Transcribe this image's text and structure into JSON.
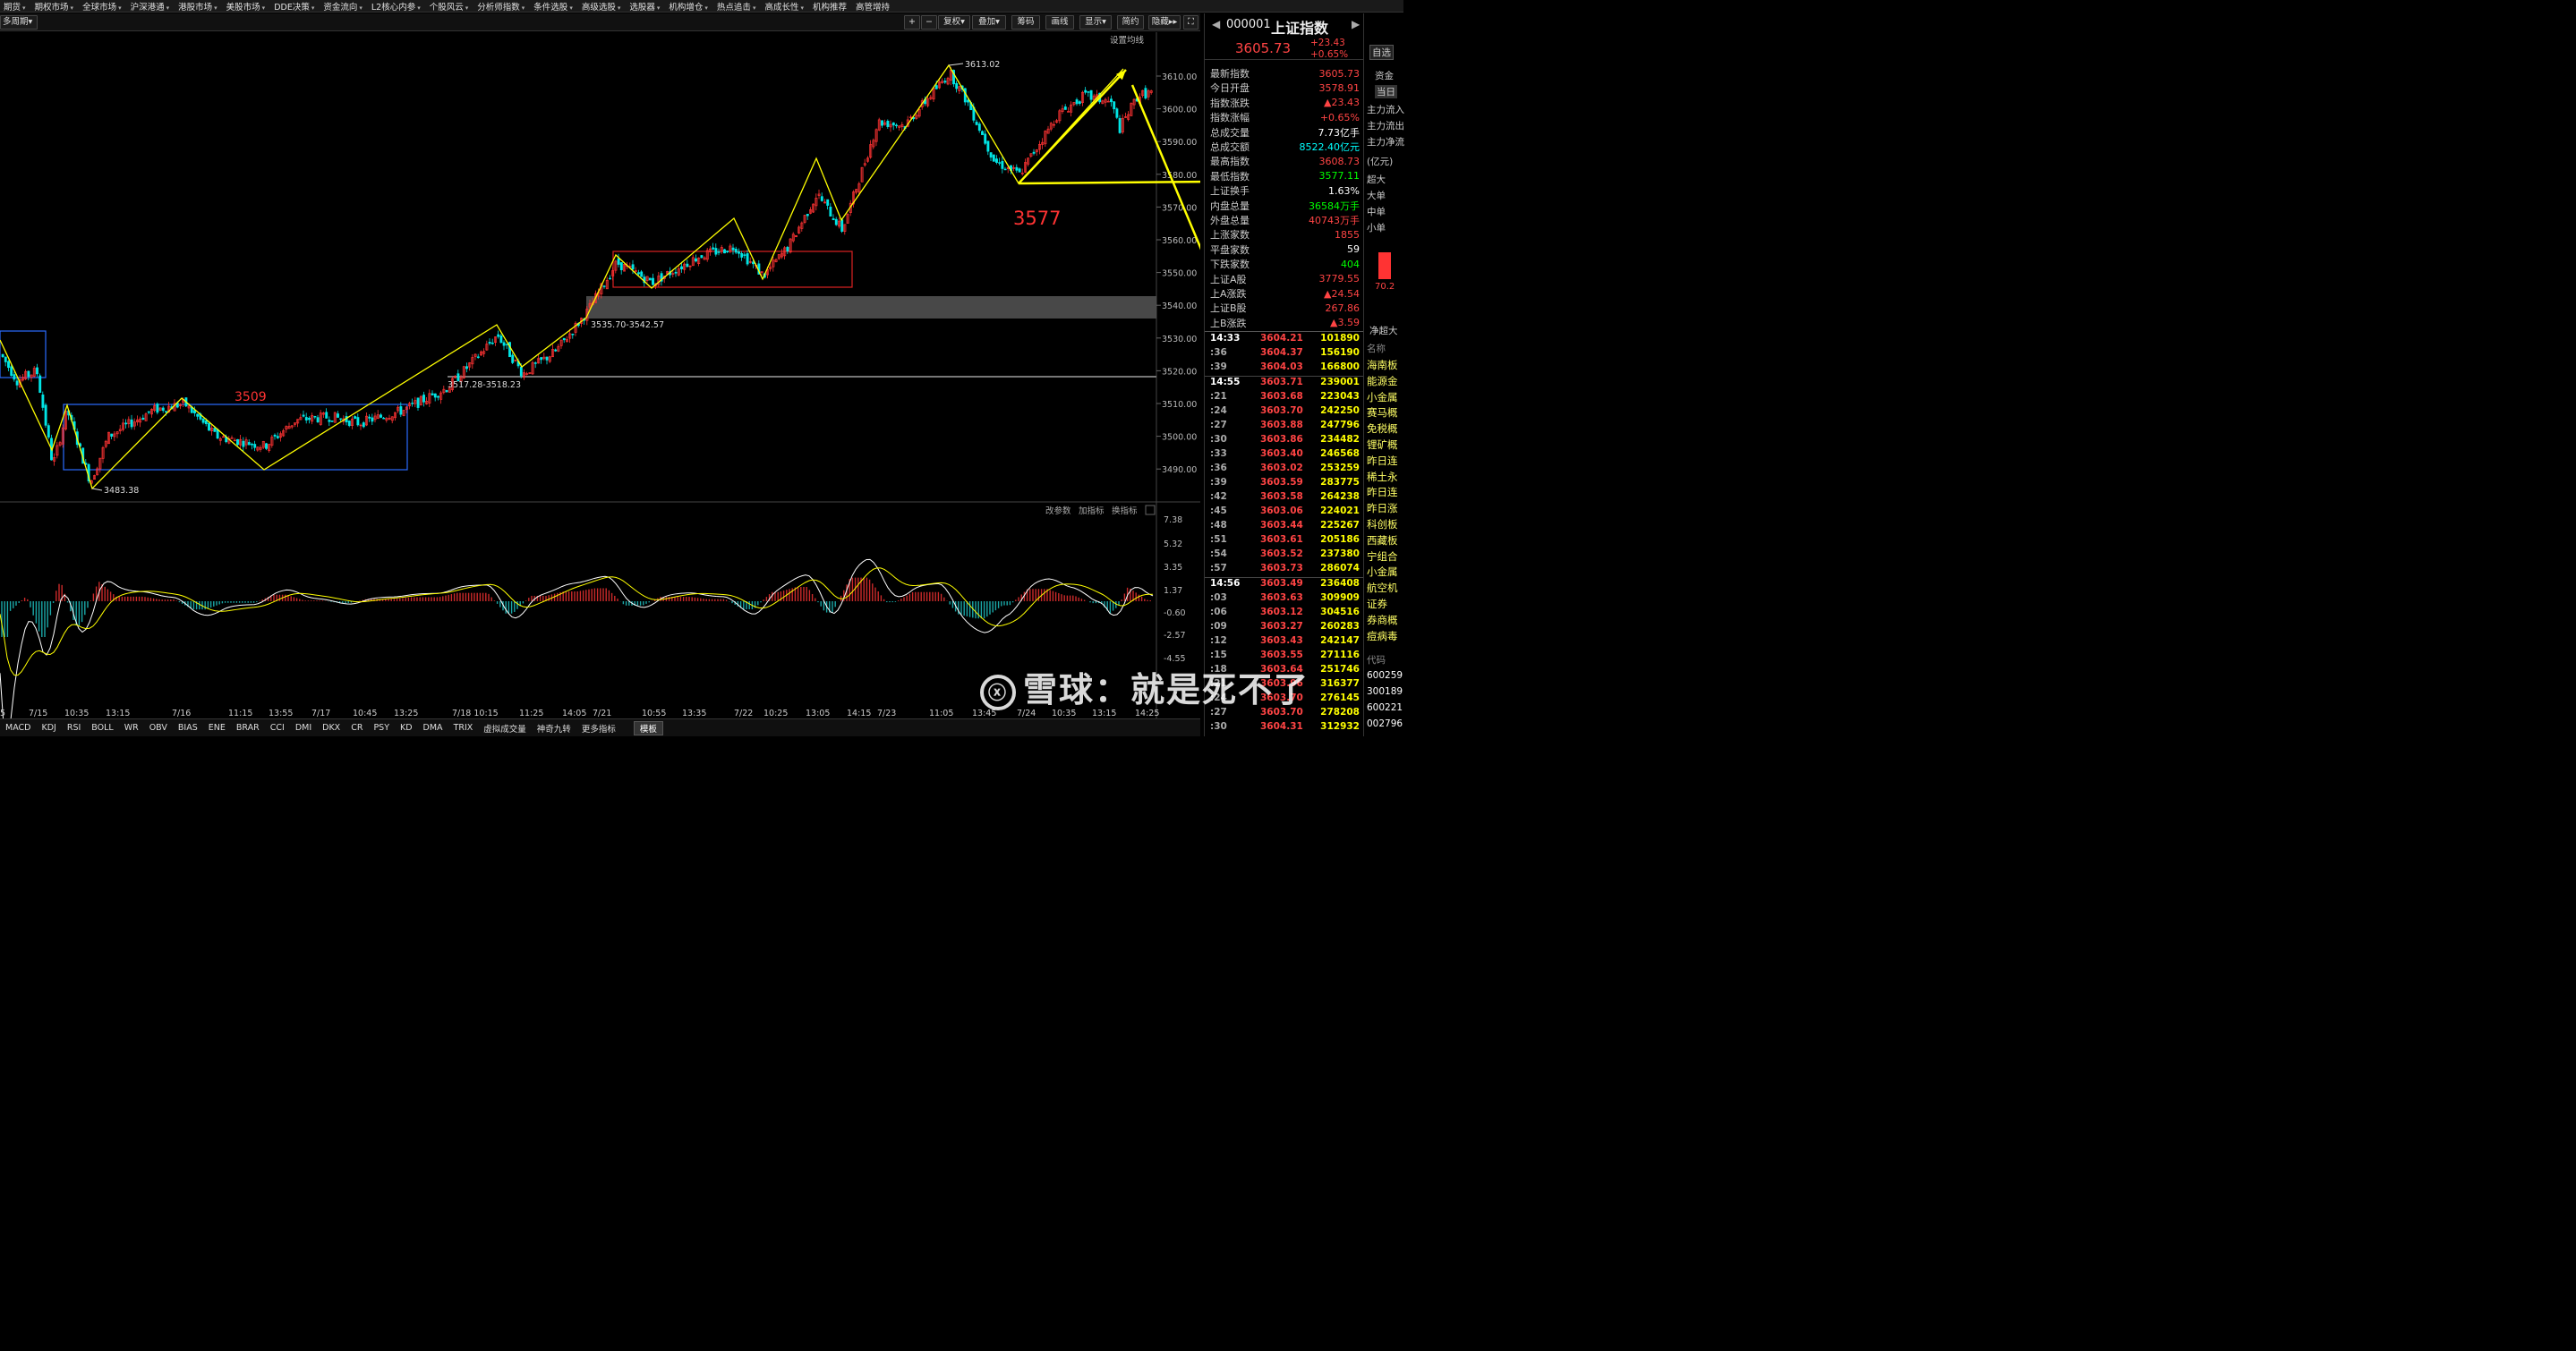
{
  "topnav": [
    "期货",
    "期权市场",
    "全球市场",
    "沪深港通",
    "港股市场",
    "美股市场",
    "DDE决策",
    "资金流向",
    "L2核心内参",
    "个股风云",
    "分析师指数",
    "条件选股",
    "高级选股",
    "选股器",
    "机构增仓",
    "热点追击",
    "高成长性",
    "机构推荐",
    "高管增持"
  ],
  "toolbar": {
    "period": "多周期",
    "plus": "+",
    "minus": "−",
    "fq": "复权",
    "overlay": "叠加",
    "chips": "筹码",
    "draw": "画线",
    "show": "显示",
    "simple": "简约",
    "hide": "隐藏",
    "settings": "设置均线"
  },
  "stock": {
    "code": "000001",
    "name": "上证指数",
    "price": "3605.73",
    "change": "+23.43",
    "change_pct": "+0.65%"
  },
  "info": [
    {
      "label": "最新指数",
      "value": "3605.73",
      "color": "#ff4444"
    },
    {
      "label": "今日开盘",
      "value": "3578.91",
      "color": "#ff4444"
    },
    {
      "label": "指数涨跌",
      "value": "▲23.43",
      "color": "#ff4444"
    },
    {
      "label": "指数涨幅",
      "value": "+0.65%",
      "color": "#ff4444"
    },
    {
      "label": "总成交量",
      "value": "7.73亿手",
      "color": "#ffffff"
    },
    {
      "label": "总成交额",
      "value": "8522.40亿元",
      "color": "#00ffff"
    },
    {
      "label": "最高指数",
      "value": "3608.73",
      "color": "#ff4444"
    },
    {
      "label": "最低指数",
      "value": "3577.11",
      "color": "#00ff00"
    },
    {
      "label": "上证换手",
      "value": "1.63%",
      "color": "#ffffff"
    },
    {
      "label": "内盘总量",
      "value": "36584万手",
      "color": "#00ff00"
    },
    {
      "label": "外盘总量",
      "value": "40743万手",
      "color": "#ff4444"
    },
    {
      "label": "上涨家数",
      "value": "1855",
      "color": "#ff4444"
    },
    {
      "label": "平盘家数",
      "value": "59",
      "color": "#ffffff"
    },
    {
      "label": "下跌家数",
      "value": "404",
      "color": "#00ff00"
    },
    {
      "label": "上证A股",
      "value": "3779.55",
      "color": "#ff4444"
    },
    {
      "label": "上A涨跌",
      "value": "▲24.54",
      "color": "#ff4444"
    },
    {
      "label": "上证B股",
      "value": "267.86",
      "color": "#ff4444"
    },
    {
      "label": "上B涨跌",
      "value": "▲3.59",
      "color": "#ff4444"
    }
  ],
  "ticks": [
    {
      "t": "14:33",
      "p": "3604.21",
      "v": "101890"
    },
    {
      "t": ":36",
      "p": "3604.37",
      "v": "156190"
    },
    {
      "t": ":39",
      "p": "3604.03",
      "v": "166800"
    },
    {
      "t": "14:55",
      "p": "3603.71",
      "v": "239001"
    },
    {
      "t": ":21",
      "p": "3603.68",
      "v": "223043"
    },
    {
      "t": ":24",
      "p": "3603.70",
      "v": "242250"
    },
    {
      "t": ":27",
      "p": "3603.88",
      "v": "247796"
    },
    {
      "t": ":30",
      "p": "3603.86",
      "v": "234482"
    },
    {
      "t": ":33",
      "p": "3603.40",
      "v": "246568"
    },
    {
      "t": ":36",
      "p": "3603.02",
      "v": "253259"
    },
    {
      "t": ":39",
      "p": "3603.59",
      "v": "283775"
    },
    {
      "t": ":42",
      "p": "3603.58",
      "v": "264238"
    },
    {
      "t": ":45",
      "p": "3603.06",
      "v": "224021"
    },
    {
      "t": ":48",
      "p": "3603.44",
      "v": "225267"
    },
    {
      "t": ":51",
      "p": "3603.61",
      "v": "205186"
    },
    {
      "t": ":54",
      "p": "3603.52",
      "v": "237380"
    },
    {
      "t": ":57",
      "p": "3603.73",
      "v": "286074"
    },
    {
      "t": "14:56",
      "p": "3603.49",
      "v": "236408"
    },
    {
      "t": ":03",
      "p": "3603.63",
      "v": "309909"
    },
    {
      "t": ":06",
      "p": "3603.12",
      "v": "304516"
    },
    {
      "t": ":09",
      "p": "3603.27",
      "v": "260283"
    },
    {
      "t": ":12",
      "p": "3603.43",
      "v": "242147"
    },
    {
      "t": ":15",
      "p": "3603.55",
      "v": "271116"
    },
    {
      "t": ":18",
      "p": "3603.64",
      "v": "251746"
    },
    {
      "t": ":21",
      "p": "3603.96",
      "v": "316377"
    },
    {
      "t": ":24",
      "p": "3603.70",
      "v": "276145"
    },
    {
      "t": ":27",
      "p": "3603.70",
      "v": "278208"
    },
    {
      "t": ":30",
      "p": "3604.31",
      "v": "312932"
    }
  ],
  "rside": {
    "zixuan": "自选",
    "zijin": "资金",
    "dangri": "当日",
    "flows": [
      "主力流入",
      "主力流出",
      "主力净流"
    ],
    "unit": "(亿元)",
    "sizes": [
      "超大",
      "大单",
      "中单",
      "小单"
    ],
    "bar_value": "70.2",
    "jingchao": "净超大",
    "mingcheng": "名称",
    "sectors": [
      "海南板",
      "能源金",
      "小金属",
      "赛马概",
      "免税概",
      "锂矿概",
      "昨日连",
      "稀土永",
      "昨日连",
      "昨日涨",
      "科创板",
      "西藏板",
      "宁组合",
      "小金属",
      "航空机",
      "证券",
      "券商概",
      "痘病毒"
    ],
    "daima": "代码",
    "codes": [
      "600259",
      "300189",
      "600221",
      "002796"
    ]
  },
  "axis_labels": [
    "3610.00",
    "3600.00",
    "3590.00",
    "3580.00",
    "3570.00",
    "3560.00",
    "3550.00",
    "3540.00",
    "3530.00",
    "3520.00",
    "3510.00",
    "3500.00",
    "3490.00"
  ],
  "macd_axis": [
    "7.38",
    "5.32",
    "3.35",
    "1.37",
    "-0.60",
    "-2.57",
    "-4.55"
  ],
  "time_labels": [
    "5",
    "7/15",
    "10:35",
    "13:15",
    "7/16",
    "11:15",
    "13:55",
    "7/17",
    "10:45",
    "13:25",
    "7/18 10:15",
    "11:25",
    "14:05",
    "7/21",
    "10:55",
    "13:35",
    "7/22",
    "10:25",
    "13:05",
    "14:15",
    "7/23",
    "11:05",
    "13:45",
    "7/24",
    "10:35",
    "13:15",
    "14:25"
  ],
  "annotations": {
    "high": "3613.02",
    "low": "3483.38",
    "gap": "3535.70-3542.57",
    "gap2": "3517.28-3518.23",
    "n3509": "3509",
    "n3577": "3577"
  },
  "macd_tools": [
    "改参数",
    "加指标",
    "换指标"
  ],
  "botbar": [
    "MACD",
    "KDJ",
    "RSI",
    "BOLL",
    "WR",
    "OBV",
    "BIAS",
    "ENE",
    "BRAR",
    "CCI",
    "DMI",
    "DKX",
    "CR",
    "PSY",
    "KD",
    "DMA",
    "TRIX",
    "虚拟成交量",
    "神奇九转",
    "更多指标",
    "模板"
  ],
  "watermark": "雪球：就是死不了"
}
